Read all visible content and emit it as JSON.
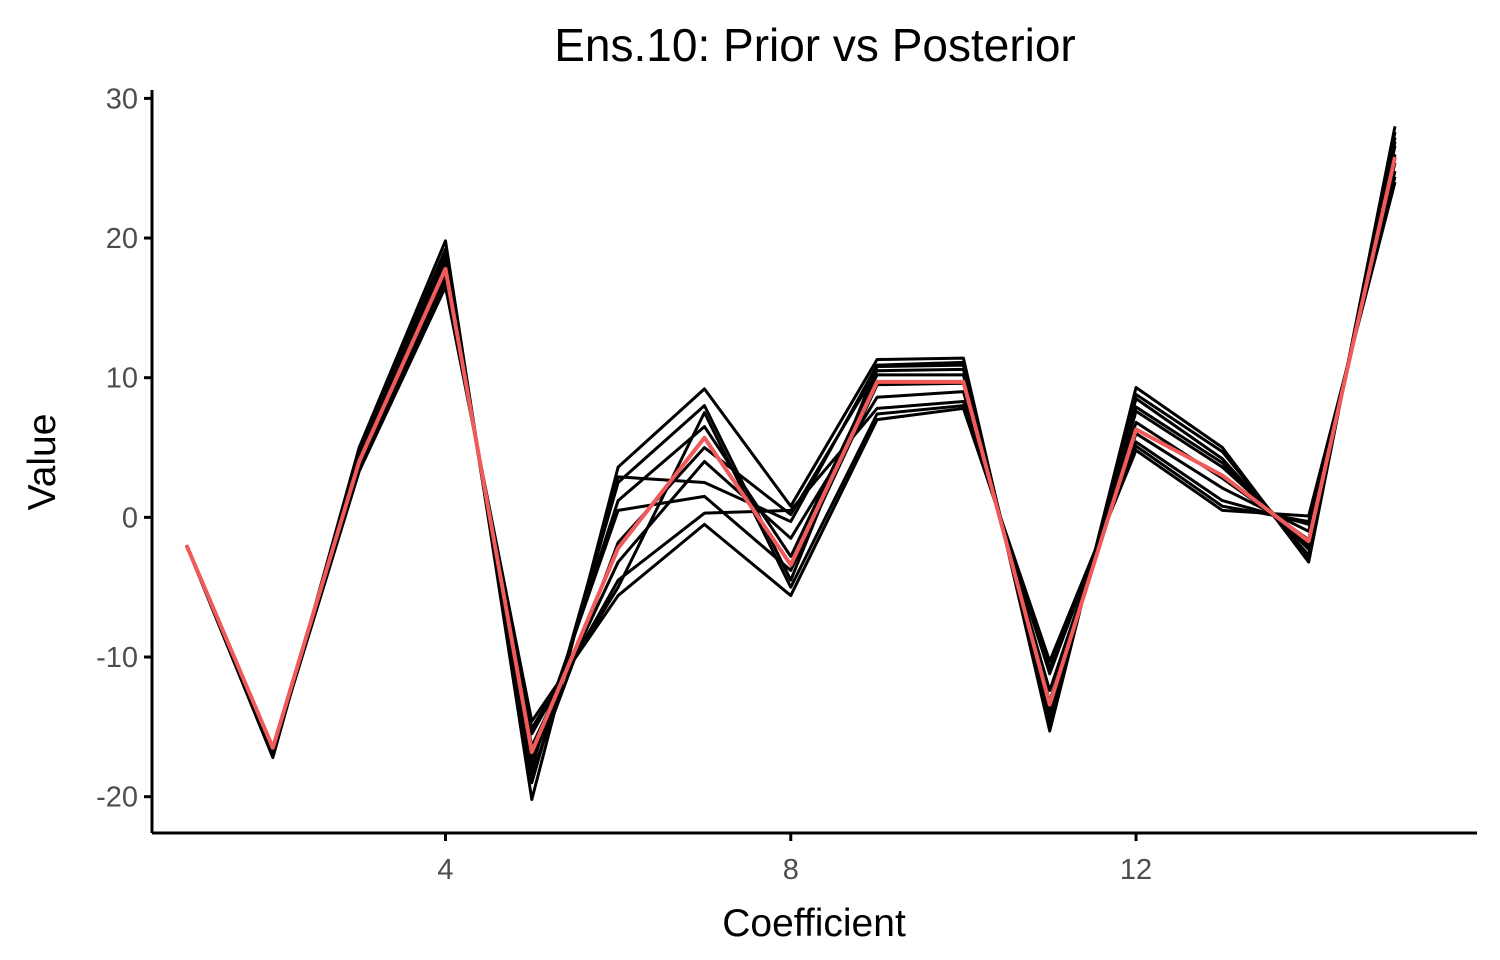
{
  "chart_data": {
    "type": "line",
    "title": "Ens.10: Prior vs Posterior",
    "xlabel": "Coefficient",
    "ylabel": "Value",
    "xlim": [
      0.6,
      15.95
    ],
    "ylim": [
      -22.6,
      30.6
    ],
    "x_ticks": [
      4,
      8,
      12
    ],
    "y_ticks": [
      -20,
      -10,
      0,
      10,
      20,
      30
    ],
    "grid": false,
    "legend": "none",
    "x": [
      1,
      2,
      3,
      4,
      5,
      6,
      7,
      8,
      9,
      10,
      11,
      12,
      13,
      14,
      15
    ],
    "series": [
      {
        "role": "ensemble-member",
        "color": "#000000",
        "values": [
          -2,
          -17.2,
          5.0,
          19.8,
          -20.2,
          3.6,
          9.2,
          0.8,
          11.3,
          11.4,
          -15.3,
          9.3,
          5.0,
          -3.2,
          28.0
        ]
      },
      {
        "role": "ensemble-member",
        "color": "#000000",
        "values": [
          -2,
          -16.8,
          3.3,
          16.5,
          -14.6,
          -5.6,
          -0.5,
          -5.6,
          7.0,
          7.8,
          -10.3,
          4.8,
          0.5,
          0.1,
          24.0
        ]
      },
      {
        "role": "ensemble-member",
        "color": "#000000",
        "values": [
          -2,
          -17.0,
          4.5,
          18.8,
          -19.0,
          2.5,
          8.0,
          -4.5,
          10.8,
          10.9,
          -14.5,
          8.5,
          4.2,
          -2.7,
          27.2
        ]
      },
      {
        "role": "ensemble-member",
        "color": "#000000",
        "values": [
          -2,
          -16.6,
          3.6,
          17.0,
          -15.5,
          -4.5,
          0.3,
          0.5,
          7.8,
          8.3,
          -11.2,
          5.4,
          1.2,
          -0.5,
          24.8
        ]
      },
      {
        "role": "ensemble-member",
        "color": "#000000",
        "values": [
          -2,
          -16.9,
          4.2,
          18.2,
          -17.8,
          1.2,
          6.5,
          -2.8,
          10.2,
          10.2,
          -13.8,
          7.6,
          3.6,
          -2.0,
          26.6
        ]
      },
      {
        "role": "ensemble-member",
        "color": "#000000",
        "values": [
          -2,
          -16.7,
          3.9,
          17.5,
          -16.4,
          -3.2,
          4.0,
          -1.5,
          8.6,
          9.0,
          -12.4,
          6.0,
          2.1,
          -1.0,
          25.4
        ]
      },
      {
        "role": "ensemble-member",
        "color": "#000000",
        "values": [
          -2,
          -17.1,
          4.7,
          19.2,
          -18.9,
          2.9,
          2.5,
          -0.3,
          10.9,
          11.1,
          -14.9,
          8.8,
          4.7,
          -2.9,
          27.6
        ]
      },
      {
        "role": "ensemble-member",
        "color": "#000000",
        "values": [
          -2,
          -16.5,
          3.5,
          16.8,
          -15.1,
          -5.0,
          7.5,
          -5.0,
          7.4,
          8.0,
          -10.8,
          5.1,
          0.8,
          -0.3,
          24.4
        ]
      },
      {
        "role": "ensemble-member",
        "color": "#000000",
        "values": [
          -2,
          -16.8,
          4.1,
          17.9,
          -17.2,
          0.5,
          1.5,
          -3.8,
          9.5,
          9.6,
          -13.2,
          6.8,
          2.8,
          -1.6,
          26.0
        ]
      },
      {
        "role": "ensemble-member",
        "color": "#000000",
        "values": [
          -2,
          -17.0,
          4.4,
          18.5,
          -18.3,
          -1.8,
          5.0,
          0.2,
          10.5,
          10.6,
          -14.0,
          7.9,
          3.9,
          -2.3,
          26.9
        ]
      },
      {
        "role": "posterior-mean",
        "color": "#f05a5a",
        "values": [
          -2,
          -16.5,
          4.0,
          17.8,
          -16.8,
          -2.2,
          5.7,
          -3.4,
          9.7,
          9.7,
          -13.4,
          6.3,
          3.0,
          -1.7,
          25.8
        ]
      }
    ]
  }
}
